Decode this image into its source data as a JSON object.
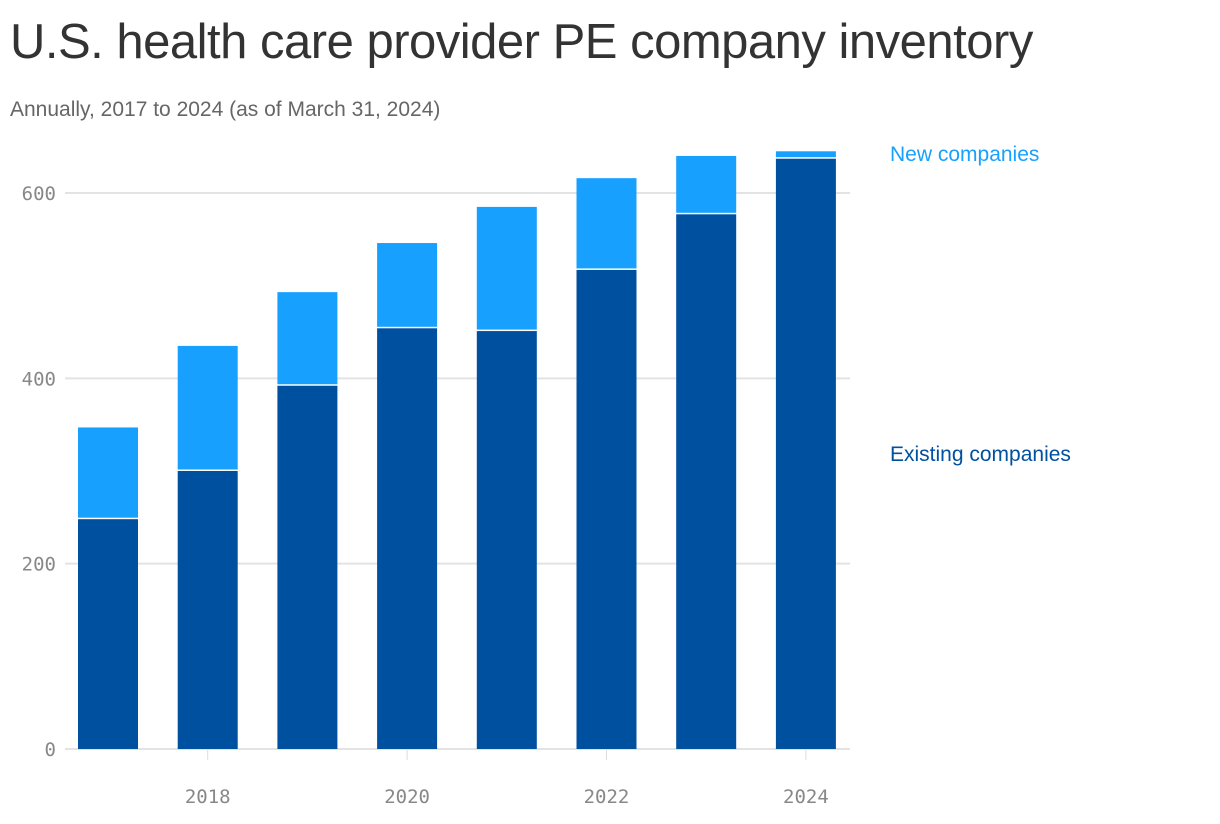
{
  "title": "U.S. health care provider PE company inventory",
  "subtitle": "Annually, 2017 to 2024 (as of March 31, 2024)",
  "chart_data": {
    "type": "bar",
    "stacked": true,
    "categories": [
      2017,
      2018,
      2019,
      2020,
      2021,
      2022,
      2023,
      2024
    ],
    "series": [
      {
        "name": "Existing companies",
        "color": "#0050a0",
        "values": [
          248,
          300,
          392,
          454,
          451,
          517,
          577,
          637
        ]
      },
      {
        "name": "New companies",
        "color": "#18a0ff",
        "values": [
          99,
          135,
          101,
          92,
          134,
          99,
          63,
          8
        ]
      }
    ],
    "ylim": [
      0,
      650
    ],
    "yticks": [
      0,
      200,
      400,
      600
    ],
    "xticks": [
      2018,
      2020,
      2022,
      2024
    ],
    "grid": true,
    "legend": "right"
  }
}
